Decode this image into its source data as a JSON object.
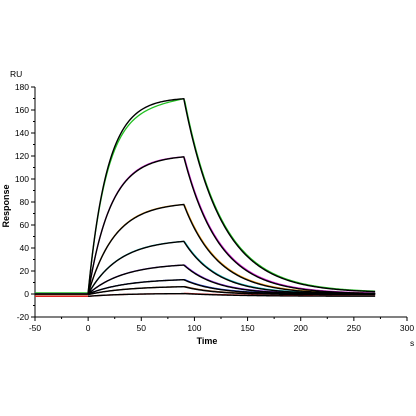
{
  "chart_data": {
    "type": "line",
    "xlabel": "Time",
    "ylabel": "Response",
    "x_unit": "s",
    "y_unit": "RU",
    "xlim": [
      -50,
      300
    ],
    "ylim": [
      -20,
      180
    ],
    "x_ticks": [
      -50,
      0,
      50,
      100,
      150,
      200,
      250,
      300
    ],
    "y_ticks": [
      -20,
      0,
      20,
      40,
      60,
      80,
      100,
      120,
      140,
      160,
      180
    ],
    "association_start": 0,
    "dissociation_start": 90,
    "end_time": 270,
    "grid": false,
    "legend": "none",
    "series": [
      {
        "color": "#22c022",
        "plateau": 170,
        "kon": 0.055,
        "koff": 0.028,
        "baseline": 1
      },
      {
        "color": "#d01fd0",
        "plateau": 121,
        "kon": 0.047,
        "koff": 0.03,
        "baseline": 0
      },
      {
        "color": "#f0a020",
        "plateau": 80,
        "kon": 0.04,
        "koff": 0.031,
        "baseline": 0
      },
      {
        "color": "#20c0c0",
        "plateau": 48,
        "kon": 0.034,
        "koff": 0.032,
        "baseline": 0
      },
      {
        "color": "#8a2be2",
        "plateau": 27,
        "kon": 0.03,
        "koff": 0.033,
        "baseline": 0
      },
      {
        "color": "#1f3fd0",
        "plateau": 13.5,
        "kon": 0.028,
        "koff": 0.034,
        "baseline": 0
      },
      {
        "color": "#8b4513",
        "plateau": 7.5,
        "kon": 0.027,
        "koff": 0.035,
        "baseline": -0.5
      },
      {
        "color": "#e02020",
        "plateau": 2.5,
        "kon": 0.03,
        "koff": 0.02,
        "baseline": -2
      }
    ],
    "fit_color": "#000000"
  }
}
